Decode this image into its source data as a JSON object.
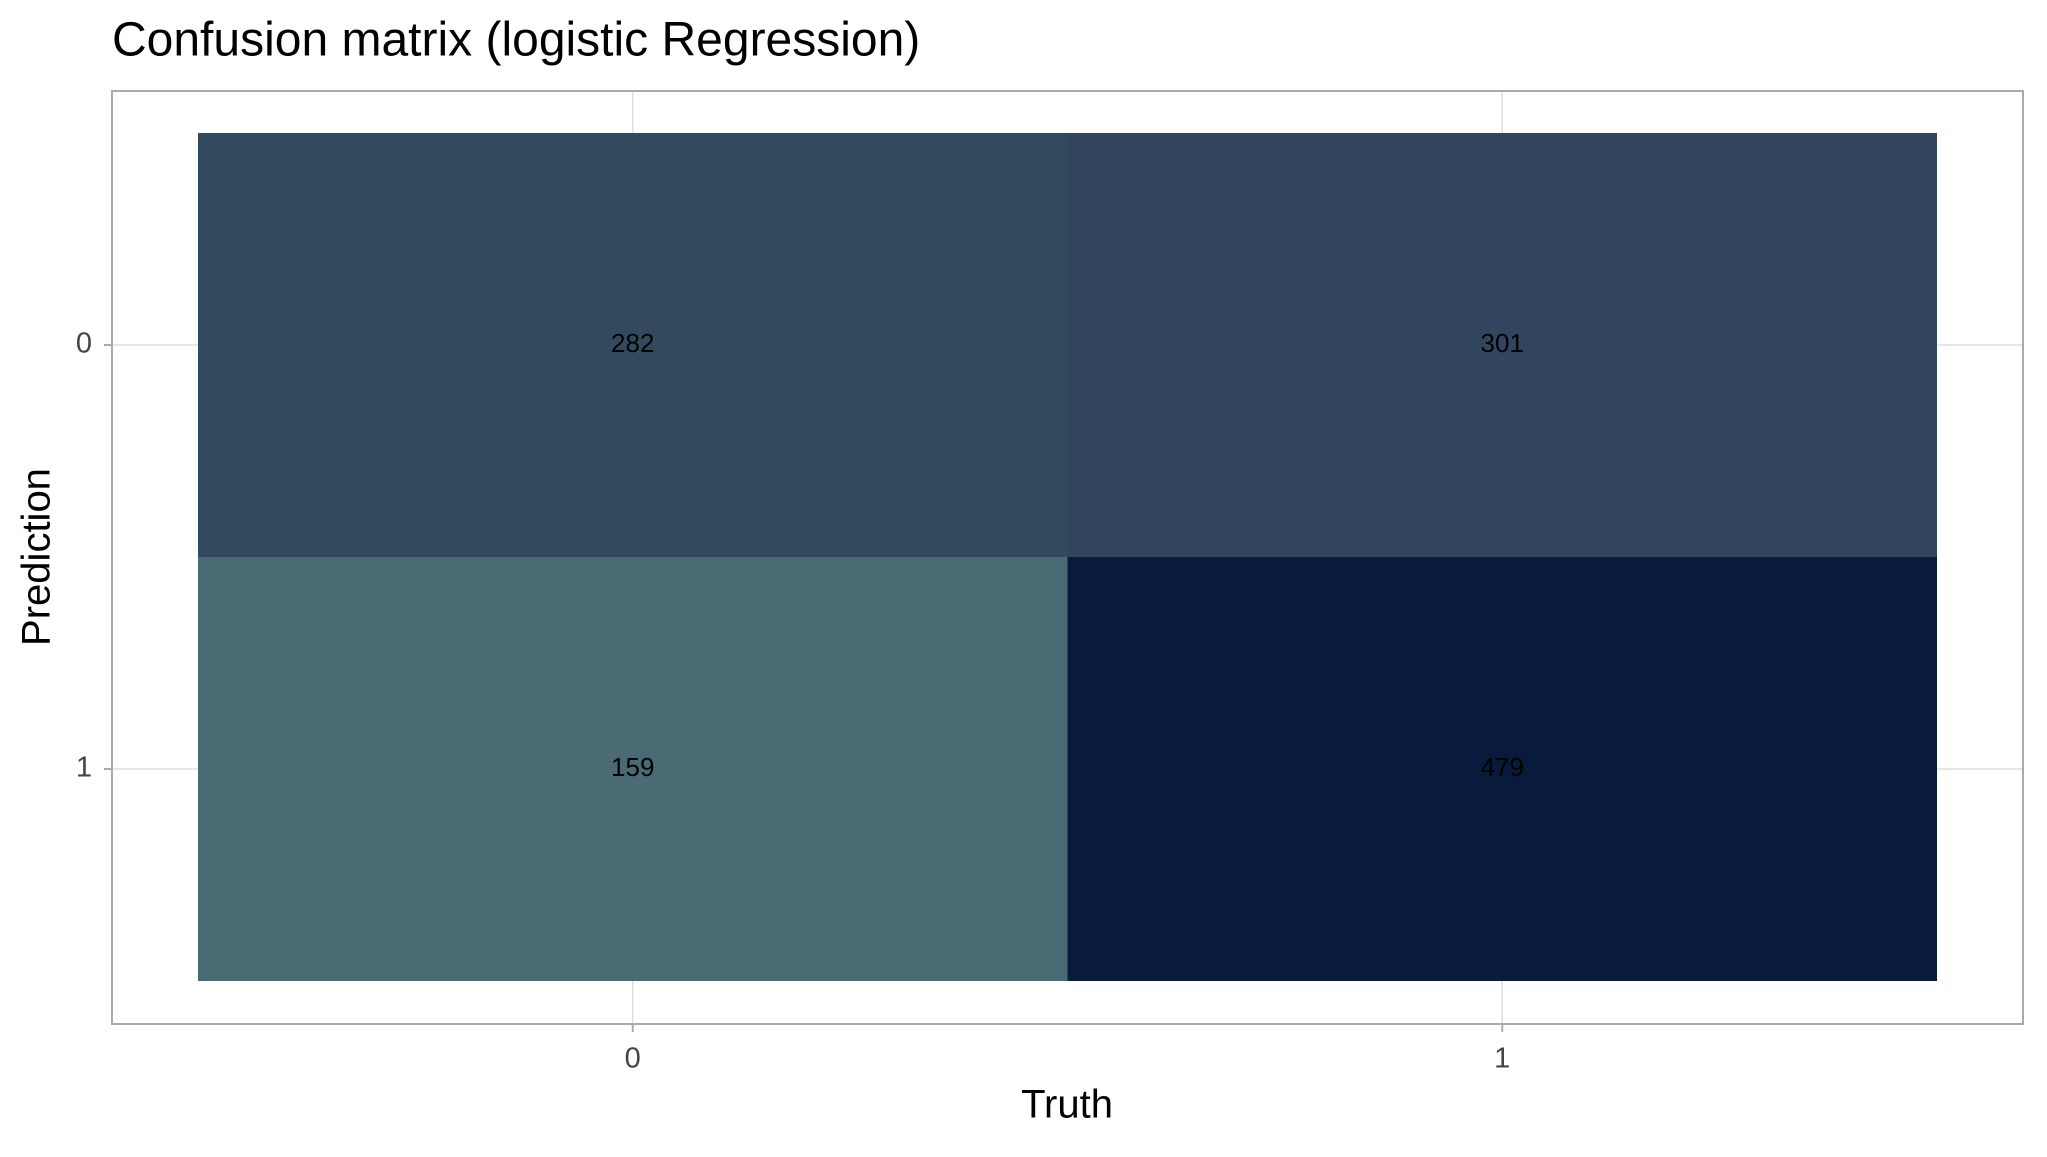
{
  "chart_data": {
    "type": "heatmap",
    "title": "Confusion matrix (logistic Regression)",
    "x_label": "Truth",
    "y_label": "Prediction",
    "x": [
      "0",
      "1"
    ],
    "y": [
      "0",
      "1"
    ],
    "values": [
      [
        282,
        301
      ],
      [
        159,
        479
      ]
    ],
    "colors": [
      [
        "#334a5e",
        "#31465e"
      ],
      [
        "#4b6b74",
        "#081b3c"
      ]
    ],
    "grid": true
  }
}
